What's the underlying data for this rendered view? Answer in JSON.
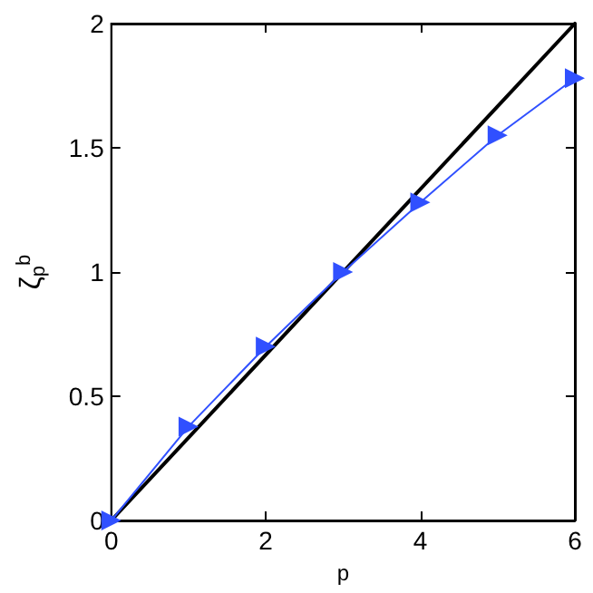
{
  "chart_data": {
    "type": "line",
    "xlabel": "p",
    "ylabel": "ζ$_{p}$$^{b}$",
    "series": [
      {
        "x": [
          0,
          6
        ],
        "values": [
          0,
          2
        ],
        "color": "#000000",
        "marker": "none"
      },
      {
        "x": [
          0,
          1,
          2,
          3,
          4,
          5,
          6
        ],
        "values": [
          0,
          0.378,
          0.7,
          1.0,
          1.28,
          1.55,
          1.78
        ],
        "color": "#3050ff",
        "marker": "triangle"
      }
    ],
    "xlim": [
      0,
      6
    ],
    "xticks": [
      0,
      2,
      4,
      6
    ],
    "ylim": [
      0,
      2
    ],
    "yticks": [
      0,
      0.5,
      1,
      1.5,
      2
    ],
    "grid": false,
    "line_style": "solid"
  }
}
